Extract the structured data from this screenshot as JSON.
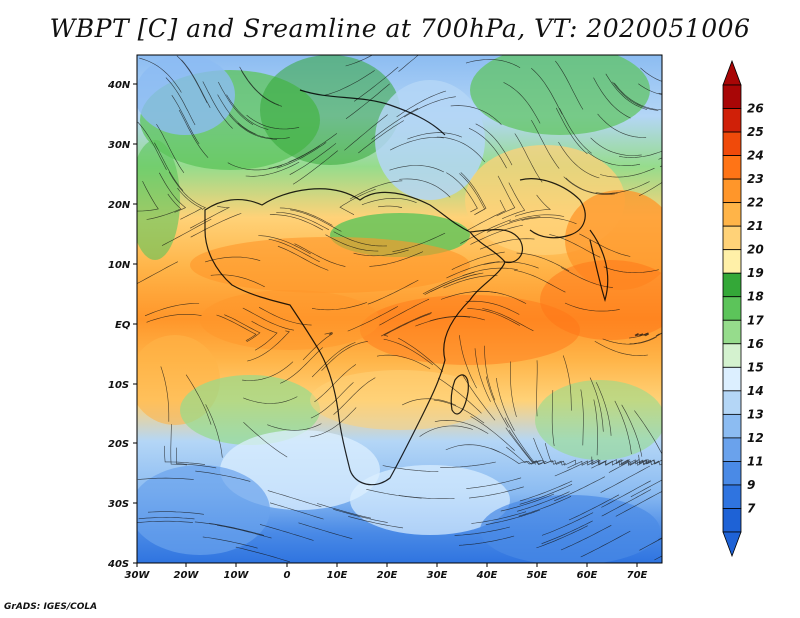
{
  "title": "WBPT [C] and Sreamline at 700hPa, VT: 2020051006",
  "credit": "GrADS: IGES/COLA",
  "lat_labels": [
    "40N",
    "30N",
    "20N",
    "10N",
    "EQ",
    "10S",
    "20S",
    "30S",
    "40S"
  ],
  "lon_labels": [
    "30W",
    "20W",
    "10W",
    "0",
    "10E",
    "20E",
    "30E",
    "40E",
    "50E",
    "60E",
    "70E"
  ],
  "colorbar": {
    "labels": [
      "7",
      "9",
      "11",
      "12",
      "13",
      "14",
      "15",
      "16",
      "17",
      "18",
      "19",
      "20",
      "21",
      "22",
      "23",
      "24",
      "25",
      "26"
    ],
    "colors": [
      "#1e62d6",
      "#2f74e0",
      "#4a8ae6",
      "#6aa2ec",
      "#8cbcf2",
      "#b4d6f6",
      "#dcefff",
      "#d4f2cf",
      "#96dc8c",
      "#5cc45a",
      "#34a838",
      "#fff0a8",
      "#ffd278",
      "#ffb448",
      "#ff962a",
      "#ff7416",
      "#f04a0a",
      "#d02008",
      "#a80606"
    ]
  },
  "icons": {
    "colorbar_top": "arrow-up-triangle",
    "colorbar_bottom": "arrow-down-triangle"
  }
}
